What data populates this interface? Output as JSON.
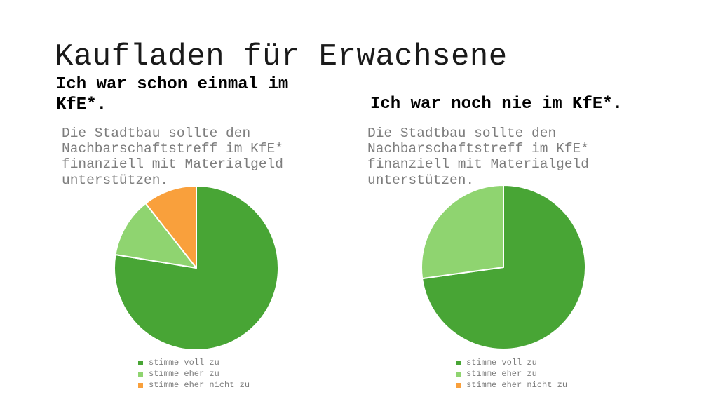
{
  "slide": {
    "title": "Kaufladen für Erwachsene",
    "background_color": "#ffffff",
    "title_color": "#1a1a1a",
    "heading_color": "#000000",
    "muted_text_color": "#7d7d7d"
  },
  "chart_data": [
    {
      "type": "pie",
      "title": "Ich war schon einmal im KfE*.",
      "subtitle": "Die Stadtbau sollte den Nachbarschaftstreff im KfE* finanziell mit Materialgeld unterstützen.",
      "categories": [
        "stimme voll zu",
        "stimme eher zu",
        "stimme eher nicht zu"
      ],
      "values_percent": [
        77.6,
        11.8,
        10.6
      ],
      "colors": [
        "#48a535",
        "#8fd470",
        "#f9a03c"
      ],
      "start_angle_deg": 0,
      "direction": "clockwise",
      "slice_border_color": "#ffffff",
      "legend_position": "bottom"
    },
    {
      "type": "pie",
      "title": "Ich war noch nie im KfE*.",
      "subtitle": "Die Stadtbau sollte den Nachbarschaftstreff im KfE* finanziell mit Materialgeld unterstützen.",
      "categories": [
        "stimme voll zu",
        "stimme eher zu",
        "stimme eher nicht zu"
      ],
      "values_percent": [
        72.8,
        27.2,
        0
      ],
      "colors": [
        "#48a535",
        "#8fd470",
        "#f9a03c"
      ],
      "start_angle_deg": 0,
      "direction": "clockwise",
      "slice_border_color": "#ffffff",
      "legend_position": "bottom"
    }
  ]
}
